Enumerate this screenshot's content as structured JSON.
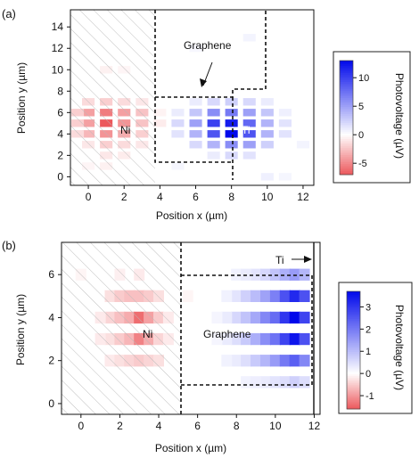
{
  "chart_data": [
    {
      "panel_label": "(a)",
      "type": "heatmap",
      "xlabel": "Position x (µm)",
      "ylabel": "Position y (µm)",
      "xlim": [
        -1,
        12.6
      ],
      "ylim": [
        -0.8,
        15.6
      ],
      "xticks": [
        0,
        2,
        4,
        6,
        8,
        10,
        12
      ],
      "yticks": [
        0,
        2,
        4,
        6,
        8,
        10,
        12,
        14
      ],
      "colorbar": {
        "label": "Photovoltage (µV)",
        "min": -7,
        "max": 13,
        "ticks": [
          -5,
          0,
          5,
          10
        ]
      },
      "annotations": [
        {
          "text": "Ni",
          "x": 2.1,
          "y": 4.5
        },
        {
          "text": "Ti",
          "x": 8.6,
          "y": 4.5
        },
        {
          "text": "Graphene",
          "x": 7.2,
          "y": 11.6
        }
      ],
      "arrow": {
        "from": [
          7.9,
          10.9
        ],
        "to": [
          7.1,
          8.1
        ]
      },
      "hatch_region": {
        "x": [
          -1,
          3.95
        ],
        "y": [
          -0.8,
          15.6
        ]
      },
      "boundary": [
        [
          4,
          15.6
        ],
        [
          4,
          7.5
        ],
        [
          8.2,
          7.5
        ],
        [
          8.2,
          8.2
        ],
        [
          10,
          8.2
        ],
        [
          10,
          15.6
        ]
      ],
      "contact_box": {
        "x": [
          4,
          8.2
        ],
        "y": [
          1.5,
          7.5
        ]
      },
      "right_divider": {
        "x": 8.2,
        "y": [
          -0.2,
          7.5
        ]
      },
      "cell": {
        "dx": 0.7,
        "dy": 0.7
      },
      "points": [
        {
          "x": 0,
          "y": 6,
          "v": -4
        },
        {
          "x": 0,
          "y": 5,
          "v": -4
        },
        {
          "x": 0,
          "y": 4,
          "v": -3
        },
        {
          "x": 0,
          "y": 3,
          "v": -1
        },
        {
          "x": 0,
          "y": 7,
          "v": -1.5
        },
        {
          "x": 1,
          "y": 6,
          "v": -5.5
        },
        {
          "x": 1,
          "y": 5,
          "v": -7
        },
        {
          "x": 1,
          "y": 4,
          "v": -4.5
        },
        {
          "x": 1,
          "y": 3,
          "v": -2
        },
        {
          "x": 1,
          "y": 7,
          "v": -2
        },
        {
          "x": 1,
          "y": 2,
          "v": -1
        },
        {
          "x": 2,
          "y": 6,
          "v": -4
        },
        {
          "x": 2,
          "y": 5,
          "v": -4.5
        },
        {
          "x": 2,
          "y": 4,
          "v": -3.5
        },
        {
          "x": 2,
          "y": 3,
          "v": -1.5
        },
        {
          "x": 2,
          "y": 7,
          "v": -1.5
        },
        {
          "x": 2,
          "y": 2,
          "v": -0.8
        },
        {
          "x": 3,
          "y": 6,
          "v": -2.5
        },
        {
          "x": 3,
          "y": 5,
          "v": -2.5
        },
        {
          "x": 3,
          "y": 4,
          "v": -2
        },
        {
          "x": 3,
          "y": 3,
          "v": -1
        },
        {
          "x": 3,
          "y": 7,
          "v": -1
        },
        {
          "x": -0.6,
          "y": 5,
          "v": -2
        },
        {
          "x": -0.6,
          "y": 6,
          "v": -2
        },
        {
          "x": -0.6,
          "y": 4,
          "v": -1.5
        },
        {
          "x": 4,
          "y": 5,
          "v": -0.8
        },
        {
          "x": 4,
          "y": 6,
          "v": -0.5
        },
        {
          "x": 1,
          "y": 10,
          "v": -0.6
        },
        {
          "x": 1,
          "y": 1,
          "v": -0.6
        },
        {
          "x": 2,
          "y": 10,
          "v": -0.4
        },
        {
          "x": 0,
          "y": 1,
          "v": -0.4
        },
        {
          "x": 5,
          "y": 5,
          "v": 2
        },
        {
          "x": 5,
          "y": 4,
          "v": 1.5
        },
        {
          "x": 5,
          "y": 6,
          "v": 1
        },
        {
          "x": 6,
          "y": 6,
          "v": 3
        },
        {
          "x": 6,
          "y": 5,
          "v": 5
        },
        {
          "x": 6,
          "y": 4,
          "v": 4
        },
        {
          "x": 6,
          "y": 3,
          "v": 2
        },
        {
          "x": 6,
          "y": 7,
          "v": 1
        },
        {
          "x": 7,
          "y": 6,
          "v": 6
        },
        {
          "x": 7,
          "y": 5,
          "v": 10
        },
        {
          "x": 7,
          "y": 4,
          "v": 9
        },
        {
          "x": 7,
          "y": 3,
          "v": 4
        },
        {
          "x": 7,
          "y": 7,
          "v": 2
        },
        {
          "x": 7,
          "y": 2,
          "v": 1
        },
        {
          "x": 8,
          "y": 6,
          "v": 7
        },
        {
          "x": 8,
          "y": 5,
          "v": 12
        },
        {
          "x": 8,
          "y": 4,
          "v": 13
        },
        {
          "x": 8,
          "y": 3,
          "v": 6
        },
        {
          "x": 8,
          "y": 7,
          "v": 2.5
        },
        {
          "x": 8,
          "y": 2,
          "v": 2
        },
        {
          "x": 9,
          "y": 6,
          "v": 5
        },
        {
          "x": 9,
          "y": 5,
          "v": 8
        },
        {
          "x": 9,
          "y": 4,
          "v": 9
        },
        {
          "x": 9,
          "y": 3,
          "v": 5
        },
        {
          "x": 9,
          "y": 7,
          "v": 2
        },
        {
          "x": 9,
          "y": 2,
          "v": 1.5
        },
        {
          "x": 10,
          "y": 6,
          "v": 3
        },
        {
          "x": 10,
          "y": 5,
          "v": 4
        },
        {
          "x": 10,
          "y": 4,
          "v": 4
        },
        {
          "x": 10,
          "y": 3,
          "v": 2.5
        },
        {
          "x": 10,
          "y": 7,
          "v": 1
        },
        {
          "x": 11,
          "y": 5,
          "v": 1.5
        },
        {
          "x": 11,
          "y": 4,
          "v": 1.5
        },
        {
          "x": 11,
          "y": 6,
          "v": 0.8
        },
        {
          "x": 9,
          "y": 13,
          "v": 0.6
        },
        {
          "x": 6,
          "y": 12,
          "v": 0.4
        },
        {
          "x": 10,
          "y": 0,
          "v": 0.8
        },
        {
          "x": 11,
          "y": 0,
          "v": 0.5
        },
        {
          "x": 5,
          "y": 1,
          "v": 0.5
        },
        {
          "x": 12,
          "y": 3,
          "v": 0.6
        }
      ]
    },
    {
      "panel_label": "(b)",
      "type": "heatmap",
      "xlabel": "Position x (µm)",
      "ylabel": "Position y (µm)",
      "xlim": [
        -1,
        12.3
      ],
      "ylim": [
        -0.5,
        7.5
      ],
      "xticks": [
        0,
        2,
        4,
        6,
        8,
        10,
        12
      ],
      "yticks": [
        0,
        2,
        4,
        6
      ],
      "colorbar": {
        "label": "Photovoltage (µV)",
        "min": -1.6,
        "max": 3.7,
        "ticks": [
          -1,
          0,
          1,
          2,
          3
        ]
      },
      "annotations": [
        {
          "text": "Ni",
          "x": 3.1,
          "y": 3.9
        },
        {
          "text": "Graphene",
          "x": 8.1,
          "y": 3.9
        },
        {
          "text": "Ti",
          "x": 10.9,
          "y": 6.9
        }
      ],
      "arrow": {
        "from": [
          11.4,
          6.95
        ],
        "to": [
          12.1,
          6.95
        ]
      },
      "hatch_region": {
        "x": [
          -1,
          5.05
        ],
        "y": [
          -0.5,
          7.5
        ]
      },
      "divider": {
        "x": 5.1,
        "y": [
          -0.5,
          7.5
        ]
      },
      "box": {
        "x": [
          5.1,
          12
        ],
        "y": [
          1,
          6.2
        ]
      },
      "ti_line": {
        "x": 12.05,
        "y": [
          -0.5,
          7.5
        ]
      },
      "cell": {
        "dx": 0.55,
        "dy": 0.55
      },
      "points": [
        {
          "x": 1.5,
          "y": 5,
          "v": -0.3
        },
        {
          "x": 1.5,
          "y": 4,
          "v": -0.4
        },
        {
          "x": 1.5,
          "y": 3,
          "v": -0.3
        },
        {
          "x": 1.5,
          "y": 2,
          "v": -0.2
        },
        {
          "x": 2,
          "y": 5,
          "v": -0.5
        },
        {
          "x": 2,
          "y": 4,
          "v": -0.6
        },
        {
          "x": 2,
          "y": 3,
          "v": -0.5
        },
        {
          "x": 2,
          "y": 2,
          "v": -0.3
        },
        {
          "x": 2.5,
          "y": 5,
          "v": -0.6
        },
        {
          "x": 2.5,
          "y": 4,
          "v": -0.8
        },
        {
          "x": 2.5,
          "y": 3,
          "v": -0.7
        },
        {
          "x": 2.5,
          "y": 2,
          "v": -0.4
        },
        {
          "x": 3,
          "y": 5,
          "v": -0.6
        },
        {
          "x": 3,
          "y": 4,
          "v": -1.4
        },
        {
          "x": 3,
          "y": 3,
          "v": -1.2
        },
        {
          "x": 3,
          "y": 2,
          "v": -0.5
        },
        {
          "x": 3.5,
          "y": 5,
          "v": -0.5
        },
        {
          "x": 3.5,
          "y": 4,
          "v": -0.9
        },
        {
          "x": 3.5,
          "y": 3,
          "v": -0.8
        },
        {
          "x": 3.5,
          "y": 2,
          "v": -0.4
        },
        {
          "x": 4,
          "y": 5,
          "v": -0.3
        },
        {
          "x": 4,
          "y": 4,
          "v": -0.5
        },
        {
          "x": 4,
          "y": 3,
          "v": -0.4
        },
        {
          "x": 4,
          "y": 2,
          "v": -0.3
        },
        {
          "x": 1,
          "y": 4,
          "v": -0.2
        },
        {
          "x": 1,
          "y": 3,
          "v": -0.2
        },
        {
          "x": 4.5,
          "y": 4,
          "v": -0.2
        },
        {
          "x": 4.5,
          "y": 3,
          "v": -0.2
        },
        {
          "x": 2,
          "y": 6,
          "v": -0.15
        },
        {
          "x": 3,
          "y": 6,
          "v": -0.2
        },
        {
          "x": 0,
          "y": 6,
          "v": -0.1
        },
        {
          "x": 5.5,
          "y": 5,
          "v": -0.1
        },
        {
          "x": 8,
          "y": 5,
          "v": 0.4
        },
        {
          "x": 8,
          "y": 4,
          "v": 0.6
        },
        {
          "x": 8,
          "y": 3,
          "v": 0.5
        },
        {
          "x": 8,
          "y": 2,
          "v": 0.3
        },
        {
          "x": 8.5,
          "y": 5,
          "v": 0.7
        },
        {
          "x": 8.5,
          "y": 4,
          "v": 0.9
        },
        {
          "x": 8.5,
          "y": 3,
          "v": 0.8
        },
        {
          "x": 8.5,
          "y": 2,
          "v": 0.5
        },
        {
          "x": 9,
          "y": 5,
          "v": 1
        },
        {
          "x": 9,
          "y": 4,
          "v": 1.3
        },
        {
          "x": 9,
          "y": 3,
          "v": 1.2
        },
        {
          "x": 9,
          "y": 2,
          "v": 0.8
        },
        {
          "x": 9,
          "y": 6,
          "v": 0.4
        },
        {
          "x": 9.5,
          "y": 5,
          "v": 1.4
        },
        {
          "x": 9.5,
          "y": 4,
          "v": 1.8
        },
        {
          "x": 9.5,
          "y": 3,
          "v": 1.7
        },
        {
          "x": 9.5,
          "y": 2,
          "v": 1.1
        },
        {
          "x": 9.5,
          "y": 6,
          "v": 0.6
        },
        {
          "x": 9.5,
          "y": 1,
          "v": 0.3
        },
        {
          "x": 10,
          "y": 5,
          "v": 1.9
        },
        {
          "x": 10,
          "y": 4,
          "v": 2.2
        },
        {
          "x": 10,
          "y": 3,
          "v": 2.1
        },
        {
          "x": 10,
          "y": 2,
          "v": 1.5
        },
        {
          "x": 10,
          "y": 6,
          "v": 0.9
        },
        {
          "x": 10,
          "y": 1,
          "v": 0.4
        },
        {
          "x": 10.5,
          "y": 5,
          "v": 2.6
        },
        {
          "x": 10.5,
          "y": 4,
          "v": 3
        },
        {
          "x": 10.5,
          "y": 3,
          "v": 2.8
        },
        {
          "x": 10.5,
          "y": 2,
          "v": 2
        },
        {
          "x": 10.5,
          "y": 6,
          "v": 1.2
        },
        {
          "x": 10.5,
          "y": 1,
          "v": 0.5
        },
        {
          "x": 11,
          "y": 5,
          "v": 3.2
        },
        {
          "x": 11,
          "y": 4,
          "v": 3.7
        },
        {
          "x": 11,
          "y": 3,
          "v": 3.5
        },
        {
          "x": 11,
          "y": 2,
          "v": 2.4
        },
        {
          "x": 11,
          "y": 6,
          "v": 1.5
        },
        {
          "x": 11,
          "y": 1,
          "v": 0.7
        },
        {
          "x": 11.5,
          "y": 5,
          "v": 2.6
        },
        {
          "x": 11.5,
          "y": 4,
          "v": 2.8
        },
        {
          "x": 11.5,
          "y": 3,
          "v": 2.6
        },
        {
          "x": 11.5,
          "y": 2,
          "v": 1.8
        },
        {
          "x": 11.5,
          "y": 6,
          "v": 1.1
        },
        {
          "x": 11.5,
          "y": 1,
          "v": 0.5
        },
        {
          "x": 7.5,
          "y": 5,
          "v": 0.2
        },
        {
          "x": 7.5,
          "y": 4,
          "v": 0.3
        },
        {
          "x": 7.5,
          "y": 3,
          "v": 0.3
        },
        {
          "x": 7.5,
          "y": 2,
          "v": 0.2
        },
        {
          "x": 7,
          "y": 4,
          "v": 0.15
        },
        {
          "x": 7,
          "y": 3,
          "v": 0.15
        },
        {
          "x": 8,
          "y": 6,
          "v": 0.2
        },
        {
          "x": 8.5,
          "y": 6,
          "v": 0.3
        },
        {
          "x": 8.5,
          "y": 1,
          "v": 0.2
        },
        {
          "x": 9,
          "y": 1,
          "v": 0.25
        }
      ]
    }
  ]
}
